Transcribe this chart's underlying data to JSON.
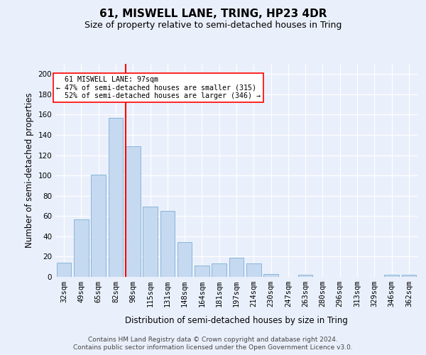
{
  "title": "61, MISWELL LANE, TRING, HP23 4DR",
  "subtitle": "Size of property relative to semi-detached houses in Tring",
  "xlabel": "Distribution of semi-detached houses by size in Tring",
  "ylabel": "Number of semi-detached properties",
  "categories": [
    "32sqm",
    "49sqm",
    "65sqm",
    "82sqm",
    "98sqm",
    "115sqm",
    "131sqm",
    "148sqm",
    "164sqm",
    "181sqm",
    "197sqm",
    "214sqm",
    "230sqm",
    "247sqm",
    "263sqm",
    "280sqm",
    "296sqm",
    "313sqm",
    "329sqm",
    "346sqm",
    "362sqm"
  ],
  "values": [
    14,
    57,
    101,
    157,
    129,
    69,
    65,
    34,
    11,
    13,
    19,
    13,
    3,
    0,
    2,
    0,
    0,
    0,
    0,
    2,
    2
  ],
  "bar_color": "#c5d9f0",
  "bar_edge_color": "#7bafd4",
  "highlight_line_index": 4,
  "ylim": [
    0,
    210
  ],
  "yticks": [
    0,
    20,
    40,
    60,
    80,
    100,
    120,
    140,
    160,
    180,
    200
  ],
  "pct_smaller": 47,
  "count_smaller": 315,
  "pct_larger": 52,
  "count_larger": 346,
  "annotation_title": "61 MISWELL LANE: 97sqm",
  "footer_line1": "Contains HM Land Registry data © Crown copyright and database right 2024.",
  "footer_line2": "Contains public sector information licensed under the Open Government Licence v3.0.",
  "background_color": "#eaf0fb",
  "grid_color": "#ffffff",
  "title_fontsize": 11,
  "subtitle_fontsize": 9,
  "axis_label_fontsize": 8.5,
  "tick_fontsize": 7.5,
  "footer_fontsize": 6.5
}
